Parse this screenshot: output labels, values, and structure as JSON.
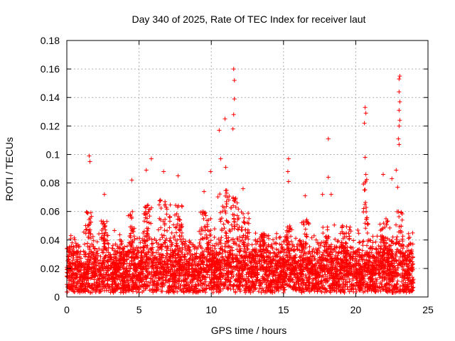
{
  "chart_data": {
    "type": "scatter",
    "title": "Day 340 of 2025, Rate Of TEC Index for receiver laut",
    "xlabel": "GPS time / hours",
    "ylabel": "ROTI / TECUs",
    "xlim": [
      0,
      25
    ],
    "ylim": [
      0,
      0.18
    ],
    "xticks": [
      0,
      5,
      10,
      15,
      20,
      25
    ],
    "xtick_labels": [
      "0",
      "5",
      "10",
      "15",
      "20",
      "25"
    ],
    "yticks": [
      0,
      0.02,
      0.04,
      0.06,
      0.08,
      0.1,
      0.12,
      0.14,
      0.16,
      0.18
    ],
    "ytick_labels": [
      "0",
      "0.02",
      "0.04",
      "0.06",
      "0.08",
      "0.1",
      "0.12",
      "0.14",
      "0.16",
      "0.18"
    ],
    "grid": true,
    "marker": "+",
    "color": "#ff0000",
    "data_range": [
      0,
      24
    ],
    "baseline": {
      "median": 0.018,
      "p95": 0.035,
      "min": 0.003
    },
    "peaks": [
      {
        "x": 1.55,
        "y": 0.099
      },
      {
        "x": 1.6,
        "y": 0.095
      },
      {
        "x": 2.6,
        "y": 0.072
      },
      {
        "x": 4.5,
        "y": 0.082
      },
      {
        "x": 5.5,
        "y": 0.089
      },
      {
        "x": 5.85,
        "y": 0.097
      },
      {
        "x": 6.7,
        "y": 0.088
      },
      {
        "x": 7.7,
        "y": 0.085
      },
      {
        "x": 9.5,
        "y": 0.074
      },
      {
        "x": 9.95,
        "y": 0.088
      },
      {
        "x": 10.55,
        "y": 0.117
      },
      {
        "x": 10.65,
        "y": 0.097
      },
      {
        "x": 10.95,
        "y": 0.125
      },
      {
        "x": 11.0,
        "y": 0.091
      },
      {
        "x": 11.55,
        "y": 0.16
      },
      {
        "x": 11.6,
        "y": 0.152
      },
      {
        "x": 11.6,
        "y": 0.139
      },
      {
        "x": 11.55,
        "y": 0.128
      },
      {
        "x": 11.5,
        "y": 0.118
      },
      {
        "x": 12.2,
        "y": 0.076
      },
      {
        "x": 15.35,
        "y": 0.097
      },
      {
        "x": 15.3,
        "y": 0.088
      },
      {
        "x": 15.35,
        "y": 0.081
      },
      {
        "x": 16.5,
        "y": 0.071
      },
      {
        "x": 17.7,
        "y": 0.072
      },
      {
        "x": 18.1,
        "y": 0.111
      },
      {
        "x": 18.1,
        "y": 0.084
      },
      {
        "x": 18.3,
        "y": 0.072
      },
      {
        "x": 20.65,
        "y": 0.133
      },
      {
        "x": 20.7,
        "y": 0.129
      },
      {
        "x": 20.6,
        "y": 0.122
      },
      {
        "x": 20.65,
        "y": 0.098
      },
      {
        "x": 20.7,
        "y": 0.086
      },
      {
        "x": 20.6,
        "y": 0.075
      },
      {
        "x": 21.9,
        "y": 0.086
      },
      {
        "x": 22.5,
        "y": 0.083
      },
      {
        "x": 22.8,
        "y": 0.089
      },
      {
        "x": 22.9,
        "y": 0.077
      },
      {
        "x": 23.05,
        "y": 0.155
      },
      {
        "x": 23.0,
        "y": 0.153
      },
      {
        "x": 23.0,
        "y": 0.144
      },
      {
        "x": 23.05,
        "y": 0.137
      },
      {
        "x": 23.0,
        "y": 0.131
      },
      {
        "x": 23.05,
        "y": 0.124
      },
      {
        "x": 23.0,
        "y": 0.12
      },
      {
        "x": 22.95,
        "y": 0.111
      },
      {
        "x": 23.0,
        "y": 0.107
      }
    ],
    "activity_bursts": [
      {
        "center": 1.6,
        "width": 0.35,
        "level": 0.06
      },
      {
        "center": 2.6,
        "width": 0.35,
        "level": 0.055
      },
      {
        "center": 3.6,
        "width": 0.3,
        "level": 0.035
      },
      {
        "center": 4.5,
        "width": 0.35,
        "level": 0.06
      },
      {
        "center": 5.6,
        "width": 0.4,
        "level": 0.065
      },
      {
        "center": 6.8,
        "width": 0.6,
        "level": 0.07
      },
      {
        "center": 7.8,
        "width": 0.5,
        "level": 0.065
      },
      {
        "center": 9.6,
        "width": 0.5,
        "level": 0.06
      },
      {
        "center": 10.9,
        "width": 0.5,
        "level": 0.075
      },
      {
        "center": 11.6,
        "width": 0.4,
        "level": 0.07
      },
      {
        "center": 12.3,
        "width": 0.4,
        "level": 0.06
      },
      {
        "center": 13.5,
        "width": 0.5,
        "level": 0.045
      },
      {
        "center": 15.3,
        "width": 0.35,
        "level": 0.05
      },
      {
        "center": 16.5,
        "width": 0.35,
        "level": 0.055
      },
      {
        "center": 18.0,
        "width": 0.4,
        "level": 0.05
      },
      {
        "center": 19.3,
        "width": 0.5,
        "level": 0.05
      },
      {
        "center": 20.7,
        "width": 0.25,
        "level": 0.085
      },
      {
        "center": 21.9,
        "width": 0.4,
        "level": 0.055
      },
      {
        "center": 23.0,
        "width": 0.3,
        "level": 0.06
      }
    ]
  }
}
